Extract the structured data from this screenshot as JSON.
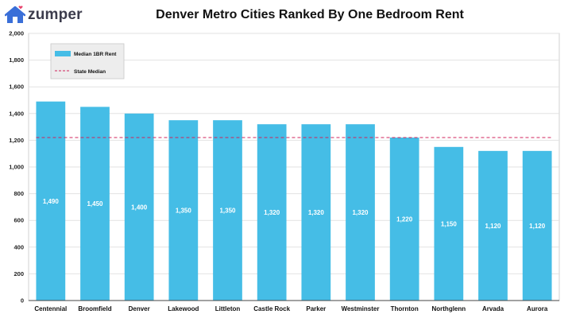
{
  "brand": {
    "name": "zumper",
    "logo_icon": "house-heart-icon",
    "accent": "#3a6fd8",
    "heart": "#e8416b"
  },
  "chart_data": {
    "type": "bar",
    "title": "Denver Metro Cities Ranked By One Bedroom Rent",
    "xlabel": "",
    "ylabel": "",
    "ylim": [
      0,
      2000
    ],
    "yticks": [
      0,
      200,
      400,
      600,
      800,
      1000,
      1200,
      1400,
      1600,
      1800,
      2000
    ],
    "ytick_labels": [
      "0",
      "200",
      "400",
      "600",
      "800",
      "1,000",
      "1,200",
      "1,400",
      "1,600",
      "1,800",
      "2,000"
    ],
    "grid": true,
    "legend_position": "top-left",
    "categories": [
      "Centennial",
      "Broomfield",
      "Denver",
      "Lakewood",
      "Littleton",
      "Castle Rock",
      "Parker",
      "Westminster",
      "Thornton",
      "Northglenn",
      "Arvada",
      "Aurora"
    ],
    "series": [
      {
        "name": "Median 1BR Rent",
        "color": "#45bde6",
        "values": [
          1490,
          1450,
          1400,
          1350,
          1350,
          1320,
          1320,
          1320,
          1220,
          1150,
          1120,
          1120
        ],
        "labels": [
          "1,490",
          "1,450",
          "1,400",
          "1,350",
          "1,350",
          "1,320",
          "1,320",
          "1,320",
          "1,220",
          "1,150",
          "1,120",
          "1,120"
        ]
      }
    ],
    "reference_line": {
      "name": "State Median",
      "value": 1220,
      "color": "#d0245c",
      "style": "dashed"
    }
  }
}
